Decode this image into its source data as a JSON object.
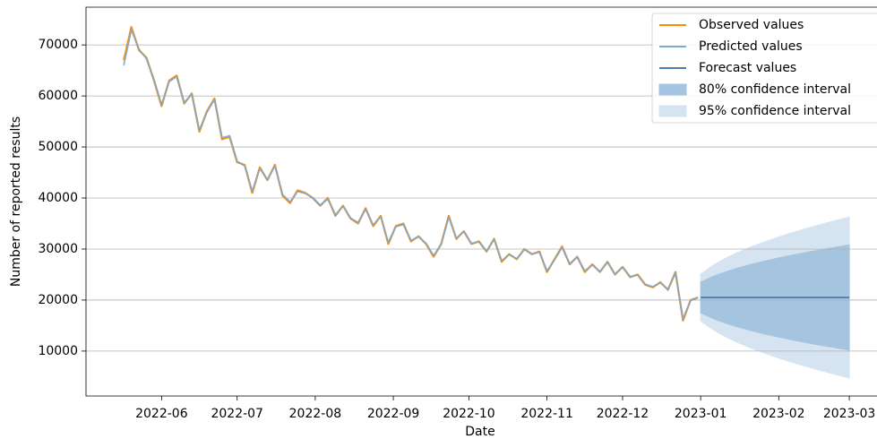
{
  "chart_data": {
    "type": "line",
    "xlabel": "Date",
    "ylabel": "Number of reported results",
    "xlim": [
      "2022-05-02",
      "2023-03-12"
    ],
    "xticks": [
      "2022-06",
      "2022-07",
      "2022-08",
      "2022-09",
      "2022-10",
      "2022-11",
      "2022-12",
      "2023-01",
      "2023-02",
      "2023-03"
    ],
    "ylim": [
      1200,
      77400
    ],
    "yticks": [
      10000,
      20000,
      30000,
      40000,
      50000,
      60000,
      70000
    ],
    "grid": true,
    "legend": "upper right",
    "series": [
      {
        "name": "Observed values",
        "color": "#ff8c00",
        "x": [
          "2022-05-17",
          "2022-05-20",
          "2022-05-23",
          "2022-05-26",
          "2022-05-29",
          "2022-06-01",
          "2022-06-04",
          "2022-06-07",
          "2022-06-10",
          "2022-06-13",
          "2022-06-16",
          "2022-06-19",
          "2022-06-22",
          "2022-06-25",
          "2022-06-28",
          "2022-07-01",
          "2022-07-04",
          "2022-07-07",
          "2022-07-10",
          "2022-07-13",
          "2022-07-16",
          "2022-07-19",
          "2022-07-22",
          "2022-07-25",
          "2022-07-28",
          "2022-07-31",
          "2022-08-03",
          "2022-08-06",
          "2022-08-09",
          "2022-08-12",
          "2022-08-15",
          "2022-08-18",
          "2022-08-21",
          "2022-08-24",
          "2022-08-27",
          "2022-08-30",
          "2022-09-02",
          "2022-09-05",
          "2022-09-08",
          "2022-09-11",
          "2022-09-14",
          "2022-09-17",
          "2022-09-20",
          "2022-09-23",
          "2022-09-26",
          "2022-09-29",
          "2022-10-02",
          "2022-10-05",
          "2022-10-08",
          "2022-10-11",
          "2022-10-14",
          "2022-10-17",
          "2022-10-20",
          "2022-10-23",
          "2022-10-26",
          "2022-10-29",
          "2022-11-01",
          "2022-11-04",
          "2022-11-07",
          "2022-11-10",
          "2022-11-13",
          "2022-11-16",
          "2022-11-19",
          "2022-11-22",
          "2022-11-25",
          "2022-11-28",
          "2022-12-01",
          "2022-12-04",
          "2022-12-07",
          "2022-12-10",
          "2022-12-13",
          "2022-12-16",
          "2022-12-19",
          "2022-12-22",
          "2022-12-25",
          "2022-12-28",
          "2022-12-31"
        ],
        "values": [
          67000,
          73500,
          69000,
          67500,
          63000,
          58000,
          63000,
          64000,
          58500,
          60500,
          53000,
          57000,
          59500,
          51500,
          52000,
          47000,
          46500,
          41000,
          46000,
          43500,
          46500,
          40500,
          39000,
          41500,
          41000,
          40000,
          38500,
          40000,
          36500,
          38500,
          36000,
          35000,
          38000,
          34500,
          36500,
          31000,
          34500,
          35000,
          31500,
          32500,
          31000,
          28500,
          31000,
          36500,
          32000,
          33500,
          31000,
          31500,
          29500,
          32000,
          27500,
          29000,
          28000,
          30000,
          29000,
          29500,
          25500,
          28000,
          30500,
          27000,
          28500,
          25500,
          27000,
          25500,
          27500,
          25000,
          26500,
          24500,
          25000,
          23000,
          22500,
          23500,
          22000,
          25500,
          16000,
          20000,
          20500
        ]
      },
      {
        "name": "Predicted values",
        "color": "#7fa9cc",
        "x": [
          "2022-05-17",
          "2022-05-20",
          "2022-05-23",
          "2022-05-26",
          "2022-05-29",
          "2022-06-01",
          "2022-06-04",
          "2022-06-07",
          "2022-06-10",
          "2022-06-13",
          "2022-06-16",
          "2022-06-19",
          "2022-06-22",
          "2022-06-25",
          "2022-06-28",
          "2022-07-01",
          "2022-07-04",
          "2022-07-07",
          "2022-07-10",
          "2022-07-13",
          "2022-07-16",
          "2022-07-19",
          "2022-07-22",
          "2022-07-25",
          "2022-07-28",
          "2022-07-31",
          "2022-08-03",
          "2022-08-06",
          "2022-08-09",
          "2022-08-12",
          "2022-08-15",
          "2022-08-18",
          "2022-08-21",
          "2022-08-24",
          "2022-08-27",
          "2022-08-30",
          "2022-09-02",
          "2022-09-05",
          "2022-09-08",
          "2022-09-11",
          "2022-09-14",
          "2022-09-17",
          "2022-09-20",
          "2022-09-23",
          "2022-09-26",
          "2022-09-29",
          "2022-10-02",
          "2022-10-05",
          "2022-10-08",
          "2022-10-11",
          "2022-10-14",
          "2022-10-17",
          "2022-10-20",
          "2022-10-23",
          "2022-10-26",
          "2022-10-29",
          "2022-11-01",
          "2022-11-04",
          "2022-11-07",
          "2022-11-10",
          "2022-11-13",
          "2022-11-16",
          "2022-11-19",
          "2022-11-22",
          "2022-11-25",
          "2022-11-28",
          "2022-12-01",
          "2022-12-04",
          "2022-12-07",
          "2022-12-10",
          "2022-12-13",
          "2022-12-16",
          "2022-12-19",
          "2022-12-22",
          "2022-12-25",
          "2022-12-28",
          "2022-12-31"
        ],
        "values": [
          66000,
          73000,
          69200,
          67300,
          63200,
          58300,
          62800,
          63800,
          58700,
          60300,
          53300,
          56800,
          59300,
          51800,
          52200,
          47200,
          46300,
          41300,
          45800,
          43600,
          46300,
          40700,
          39200,
          41300,
          40900,
          40100,
          38600,
          39800,
          36700,
          38400,
          36100,
          35200,
          37800,
          34700,
          36400,
          31300,
          34400,
          34800,
          31700,
          32400,
          31100,
          28700,
          30900,
          36300,
          32100,
          33400,
          31100,
          31400,
          29600,
          31900,
          27700,
          28900,
          28100,
          29900,
          29000,
          29400,
          25700,
          27900,
          30300,
          27100,
          28400,
          25700,
          26900,
          25600,
          27400,
          25100,
          26400,
          24600,
          24900,
          23100,
          22600,
          23400,
          22100,
          25300,
          16300,
          19900,
          20500
        ]
      },
      {
        "name": "Forecast values",
        "color": "#4a7fb5",
        "x": [
          "2023-01-01",
          "2023-01-06",
          "2023-01-11",
          "2023-01-16",
          "2023-01-21",
          "2023-01-26",
          "2023-01-31",
          "2023-02-05",
          "2023-02-10",
          "2023-02-15",
          "2023-02-20",
          "2023-02-25",
          "2023-03-01"
        ],
        "values": [
          20500,
          20500,
          20500,
          20500,
          20500,
          20500,
          20500,
          20500,
          20500,
          20500,
          20500,
          20500,
          20500
        ]
      }
    ],
    "intervals": [
      {
        "name": "80% confidence interval",
        "color": "#a4c4e0",
        "x": [
          "2023-01-01",
          "2023-01-06",
          "2023-01-11",
          "2023-01-16",
          "2023-01-21",
          "2023-01-26",
          "2023-01-31",
          "2023-02-05",
          "2023-02-10",
          "2023-02-15",
          "2023-02-20",
          "2023-02-25",
          "2023-03-01"
        ],
        "lower": [
          17500,
          16350,
          15450,
          14700,
          14020,
          13410,
          12850,
          12330,
          11840,
          11380,
          10940,
          10520,
          10190
        ],
        "upper": [
          23500,
          24650,
          25550,
          26300,
          26980,
          27590,
          28150,
          28670,
          29160,
          29620,
          30060,
          30480,
          30810
        ]
      },
      {
        "name": "95% confidence interval",
        "color": "#d6e4f1",
        "x": [
          "2023-01-01",
          "2023-01-06",
          "2023-01-11",
          "2023-01-16",
          "2023-01-21",
          "2023-01-26",
          "2023-01-31",
          "2023-02-05",
          "2023-02-10",
          "2023-02-15",
          "2023-02-20",
          "2023-02-25",
          "2023-03-01"
        ],
        "lower": [
          15910,
          14150,
          12780,
          11610,
          10590,
          9660,
          8800,
          8000,
          7260,
          6550,
          5870,
          5220,
          4730
        ],
        "upper": [
          25090,
          26850,
          28230,
          29390,
          30410,
          31340,
          32200,
          33000,
          33750,
          34460,
          35130,
          35780,
          36270
        ]
      }
    ]
  }
}
